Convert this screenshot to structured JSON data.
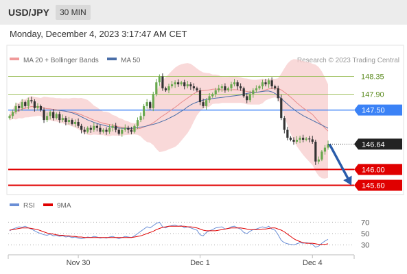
{
  "header": {
    "pair": "USD/JPY",
    "timeframe": "30 MIN",
    "datetime": "Monday, December 4, 2023 3:17:47 AM CET"
  },
  "legend": {
    "ma20_label": "MA 20 + Bollinger Bands",
    "ma50_label": "MA 50",
    "credit": "Research © 2023 Trading Central",
    "rsi_label": "RSI",
    "ma9_label": "9MA"
  },
  "colors": {
    "bands_fill": "#f7c9c9",
    "ma20": "#e88b8b",
    "ma50": "#4a6ea8",
    "candle_up": "#6aa84f",
    "candle_down": "#333333",
    "resistance": "#9bbf5a",
    "pivot": "#3b82f6",
    "support": "#e00000",
    "arrow": "#2a5caa",
    "rsi": "#6b8fd6",
    "rsi_ma": "#e00000"
  },
  "chart_data": [
    {
      "type": "candlestick",
      "y_range": [
        145.4,
        148.55
      ],
      "x_ticks": [
        "Nov 30",
        "Dec 1",
        "Dec 4"
      ],
      "current_price": 146.64,
      "levels": [
        {
          "value": 148.35,
          "label": "148.35",
          "kind": "resistance"
        },
        {
          "value": 147.9,
          "label": "147.90",
          "kind": "resistance"
        },
        {
          "value": 147.5,
          "label": "147.50",
          "kind": "pivot"
        },
        {
          "value": 146.0,
          "label": "146.00",
          "kind": "support"
        },
        {
          "value": 145.6,
          "label": "145.60",
          "kind": "support"
        }
      ],
      "current_label": "146.64",
      "projection": {
        "from": 146.64,
        "to": 145.6
      },
      "close": [
        147.35,
        147.45,
        147.6,
        147.55,
        147.7,
        147.6,
        147.75,
        147.72,
        147.55,
        147.6,
        147.5,
        147.25,
        147.35,
        147.45,
        147.3,
        147.4,
        147.25,
        147.3,
        147.2,
        147.25,
        147.15,
        147.2,
        147.1,
        147.0,
        146.95,
        147.05,
        147.0,
        147.1,
        147.05,
        146.95,
        147.0,
        146.95,
        147.05,
        147.1,
        147.0,
        146.9,
        147.0,
        147.05,
        147.0,
        146.95,
        147.1,
        147.25,
        147.35,
        147.6,
        147.7,
        147.55,
        147.9,
        148.2,
        148.35,
        148.05,
        148.0,
        148.1,
        148.15,
        148.2,
        148.15,
        148.2,
        148.1,
        148.15,
        148.1,
        148.05,
        148.0,
        147.7,
        147.6,
        147.75,
        147.85,
        147.9,
        148.0,
        148.05,
        148.1,
        148.0,
        148.05,
        148.15,
        148.2,
        148.1,
        148.05,
        147.85,
        147.75,
        147.9,
        148.0,
        148.05,
        148.1,
        148.2,
        148.15,
        148.25,
        148.1,
        148.05,
        147.8,
        147.3,
        147.0,
        146.8,
        146.75,
        146.7,
        146.75,
        146.8,
        146.75,
        146.78,
        146.76,
        146.7,
        146.2,
        146.25,
        146.45,
        146.55,
        146.64
      ],
      "ma50": [
        147.5,
        147.5,
        147.49,
        147.48,
        147.47,
        147.45,
        147.43,
        147.4,
        147.37,
        147.33,
        147.29,
        147.25,
        147.22,
        147.19,
        147.16,
        147.14,
        147.12,
        147.1,
        147.08,
        147.07,
        147.06,
        147.05,
        147.04,
        147.04,
        147.04,
        147.04,
        147.05,
        147.06,
        147.07,
        147.08,
        147.1,
        147.12,
        147.14,
        147.16,
        147.19,
        147.22,
        147.25,
        147.29,
        147.33,
        147.37,
        147.42,
        147.47,
        147.52,
        147.58,
        147.63,
        147.67,
        147.7,
        147.73,
        147.75,
        147.77,
        147.78,
        147.79,
        147.8,
        147.81,
        147.82,
        147.83,
        147.84,
        147.85,
        147.86,
        147.87,
        147.88,
        147.9,
        147.92,
        147.93,
        147.94,
        147.95,
        147.96,
        147.97,
        147.98,
        147.98,
        147.96,
        147.92,
        147.86,
        147.79,
        147.72,
        147.65,
        147.58,
        147.52,
        147.46,
        147.41,
        147.36,
        147.32,
        147.28,
        147.24,
        147.2,
        147.16,
        147.12,
        147.08,
        147.04
      ],
      "rsi": {
        "ticks": [
          70,
          50,
          30
        ],
        "y_range": [
          15,
          85
        ],
        "values": [
          55,
          58,
          60,
          62,
          61,
          63,
          60,
          58,
          55,
          52,
          50,
          48,
          47,
          49,
          46,
          47,
          45,
          46,
          44,
          45,
          43,
          44,
          42,
          41,
          42,
          44,
          43,
          45,
          44,
          42,
          43,
          42,
          44,
          45,
          43,
          41,
          43,
          45,
          44,
          43,
          46,
          50,
          54,
          58,
          62,
          60,
          64,
          68,
          70,
          62,
          60,
          63,
          64,
          65,
          63,
          64,
          60,
          62,
          60,
          58,
          56,
          48,
          46,
          52,
          55,
          57,
          60,
          61,
          62,
          58,
          59,
          62,
          63,
          60,
          58,
          52,
          50,
          54,
          57,
          58,
          60,
          62,
          60,
          63,
          58,
          56,
          48,
          38,
          34,
          32,
          31,
          30,
          32,
          34,
          33,
          34,
          33,
          31,
          26,
          28,
          33,
          37,
          40
        ],
        "ma9": [
          56,
          57,
          58,
          59,
          60,
          60,
          60,
          59,
          58,
          57,
          55,
          53,
          51,
          50,
          49,
          48,
          47,
          47,
          46,
          46,
          45,
          45,
          44,
          44,
          43,
          43,
          43,
          43,
          43,
          43,
          43,
          43,
          43,
          43,
          43,
          43,
          43,
          43,
          43,
          43,
          44,
          45,
          46,
          48,
          50,
          52,
          54,
          57,
          59,
          61,
          62,
          63,
          63,
          63,
          63,
          63,
          63,
          62,
          62,
          61,
          60,
          58,
          56,
          55,
          55,
          55,
          55,
          56,
          57,
          58,
          59,
          60,
          60,
          60,
          60,
          59,
          58,
          57,
          57,
          57,
          57,
          58,
          58,
          59,
          60,
          60,
          58,
          56,
          53,
          49,
          45,
          41,
          38,
          36,
          34,
          33,
          33,
          33,
          32,
          31,
          31,
          31,
          32
        ]
      }
    }
  ]
}
